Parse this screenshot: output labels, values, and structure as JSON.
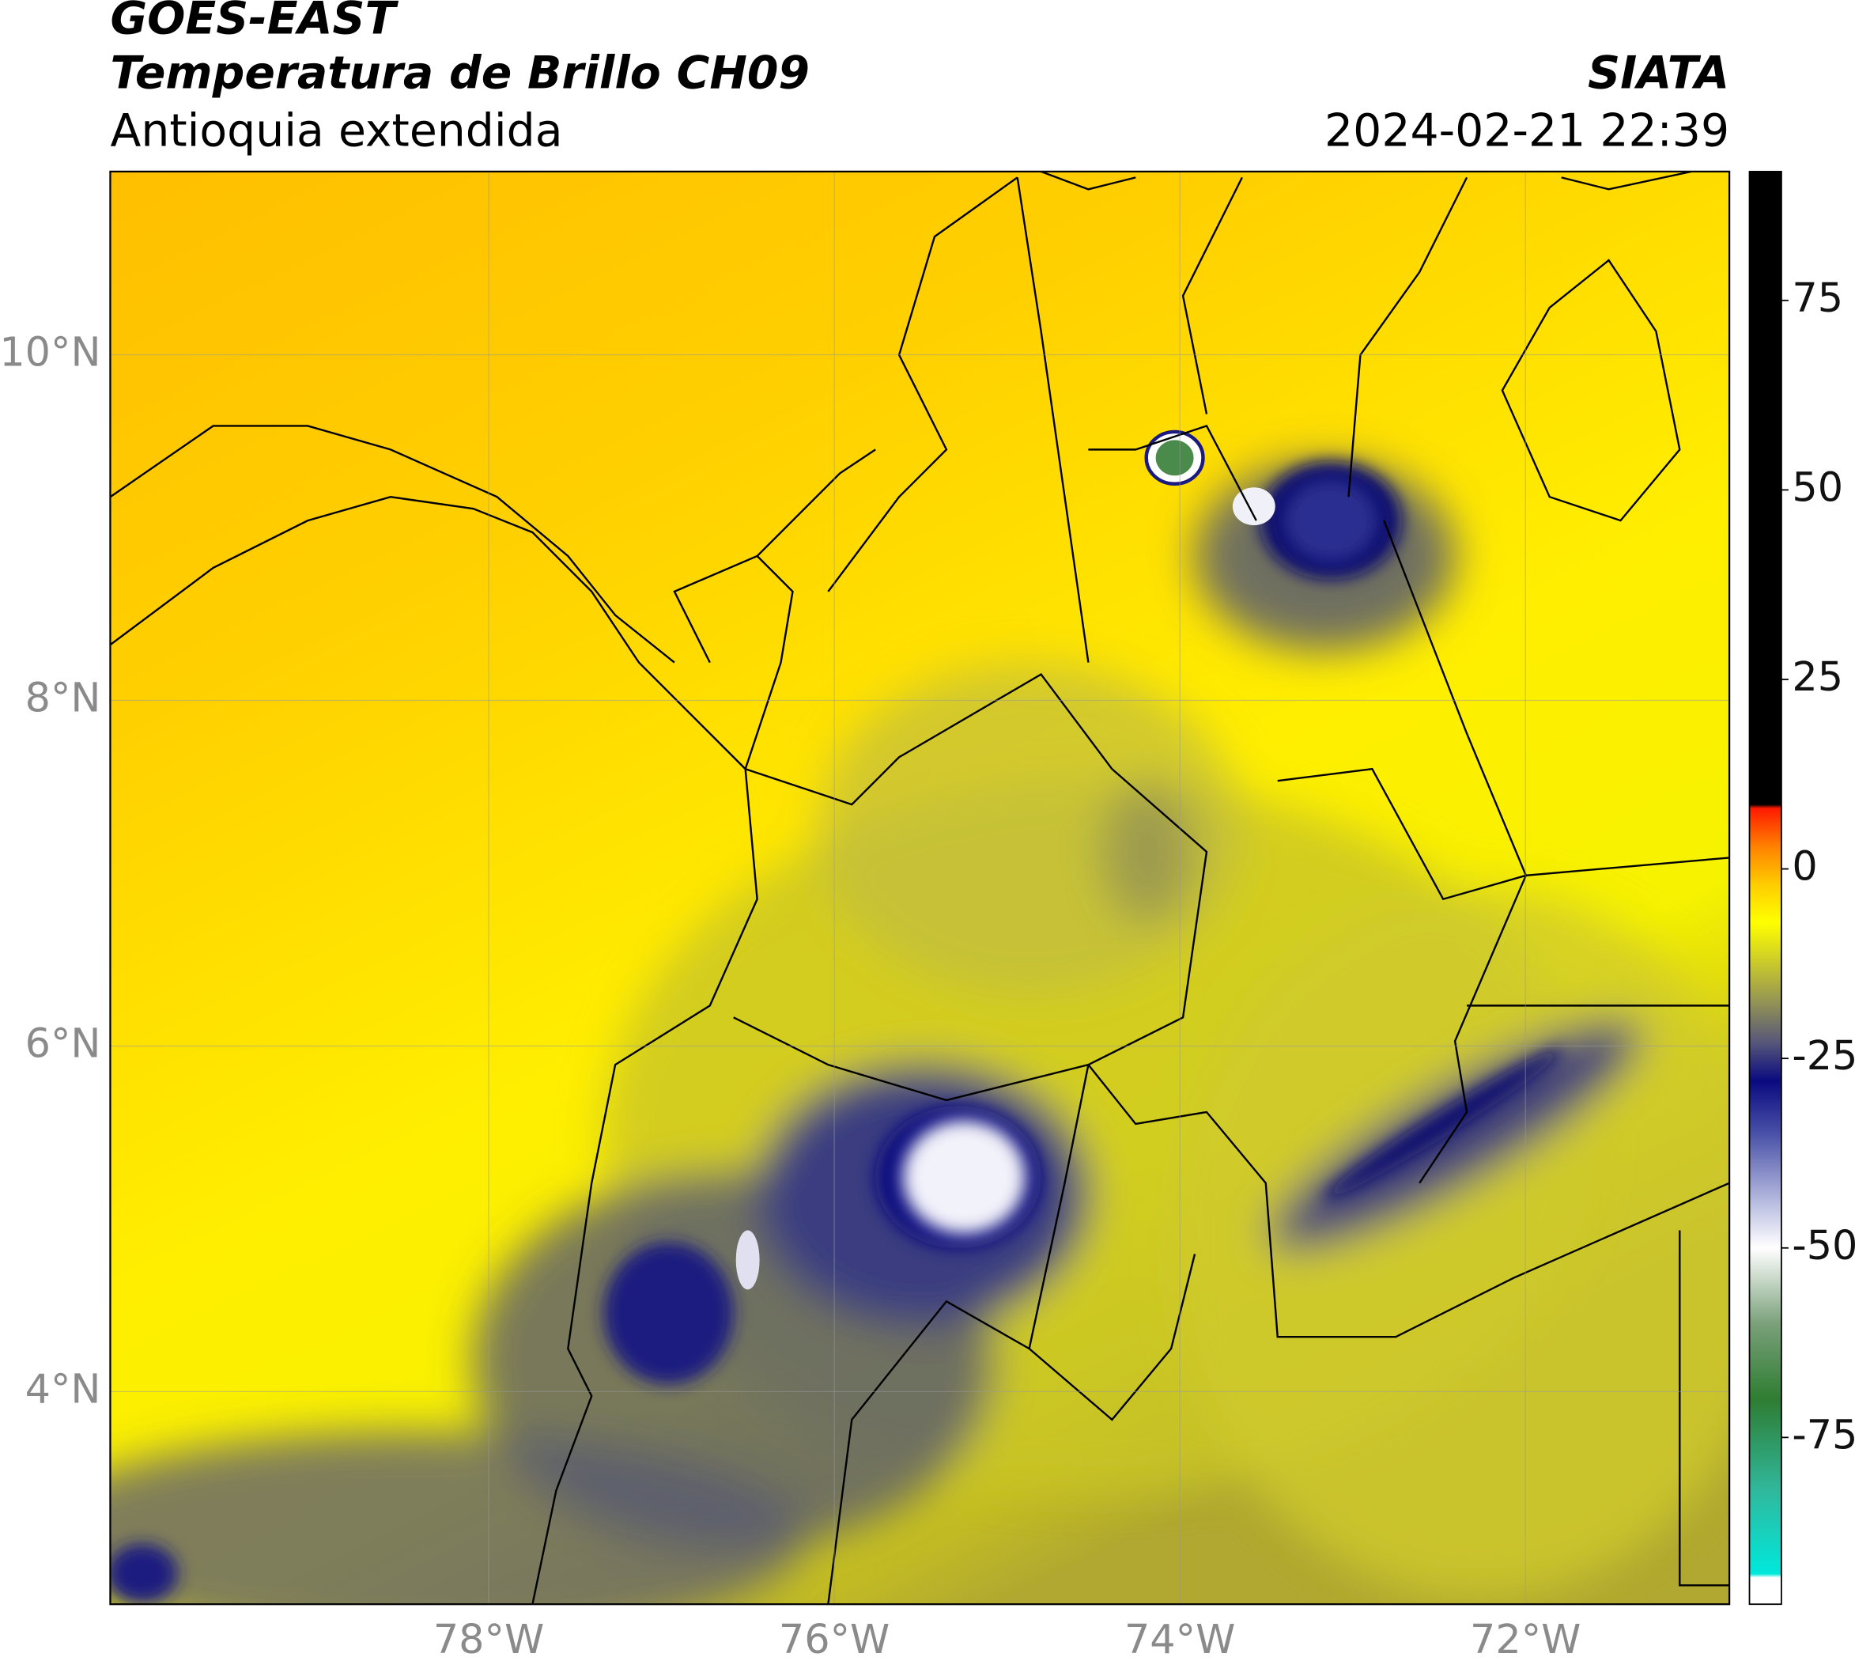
{
  "header": {
    "title": "GOES-EAST",
    "subtitle": "Temperatura de Brillo CH09",
    "region": "Antioquia extendida",
    "source": "SIATA",
    "datetime": "2024-02-21 22:39"
  },
  "map": {
    "xlim": [
      -80.19,
      -70.82
    ],
    "ylim": [
      2.77,
      11.06
    ],
    "xticks": [
      {
        "value": -78,
        "label": "78°W"
      },
      {
        "value": -76,
        "label": "76°W"
      },
      {
        "value": -74,
        "label": "74°W"
      },
      {
        "value": -72,
        "label": "72°W"
      }
    ],
    "yticks": [
      {
        "value": 4,
        "label": "4°N"
      },
      {
        "value": 6,
        "label": "6°N"
      },
      {
        "value": 8,
        "label": "8°N"
      },
      {
        "value": 10,
        "label": "10°N"
      }
    ],
    "grid": true
  },
  "colorbar": {
    "lim": [
      -97,
      92
    ],
    "ticks": [
      -75,
      -50,
      -25,
      0,
      25,
      50,
      75
    ],
    "colormap": [
      {
        "value": -97,
        "color": "#ffffff"
      },
      {
        "value": -93.5,
        "color": "#ffffff"
      },
      {
        "value": -93,
        "color": "#00e8dc"
      },
      {
        "value": -82,
        "color": "#30b89c"
      },
      {
        "value": -70,
        "color": "#2e7d32"
      },
      {
        "value": -60,
        "color": "#7aa07a"
      },
      {
        "value": -50,
        "color": "#ffffff"
      },
      {
        "value": -44,
        "color": "#b8bce0"
      },
      {
        "value": -35,
        "color": "#4a52a8"
      },
      {
        "value": -28,
        "color": "#0a0a80"
      },
      {
        "value": -23,
        "color": "#55557a"
      },
      {
        "value": -17,
        "color": "#9a9a50"
      },
      {
        "value": -11,
        "color": "#d8d820"
      },
      {
        "value": -7,
        "color": "#ffff00"
      },
      {
        "value": -2,
        "color": "#ffcc00"
      },
      {
        "value": 3,
        "color": "#ff8000"
      },
      {
        "value": 8,
        "color": "#ff1a00"
      },
      {
        "value": 8.5,
        "color": "#000000"
      },
      {
        "value": 92,
        "color": "#000000"
      }
    ]
  }
}
